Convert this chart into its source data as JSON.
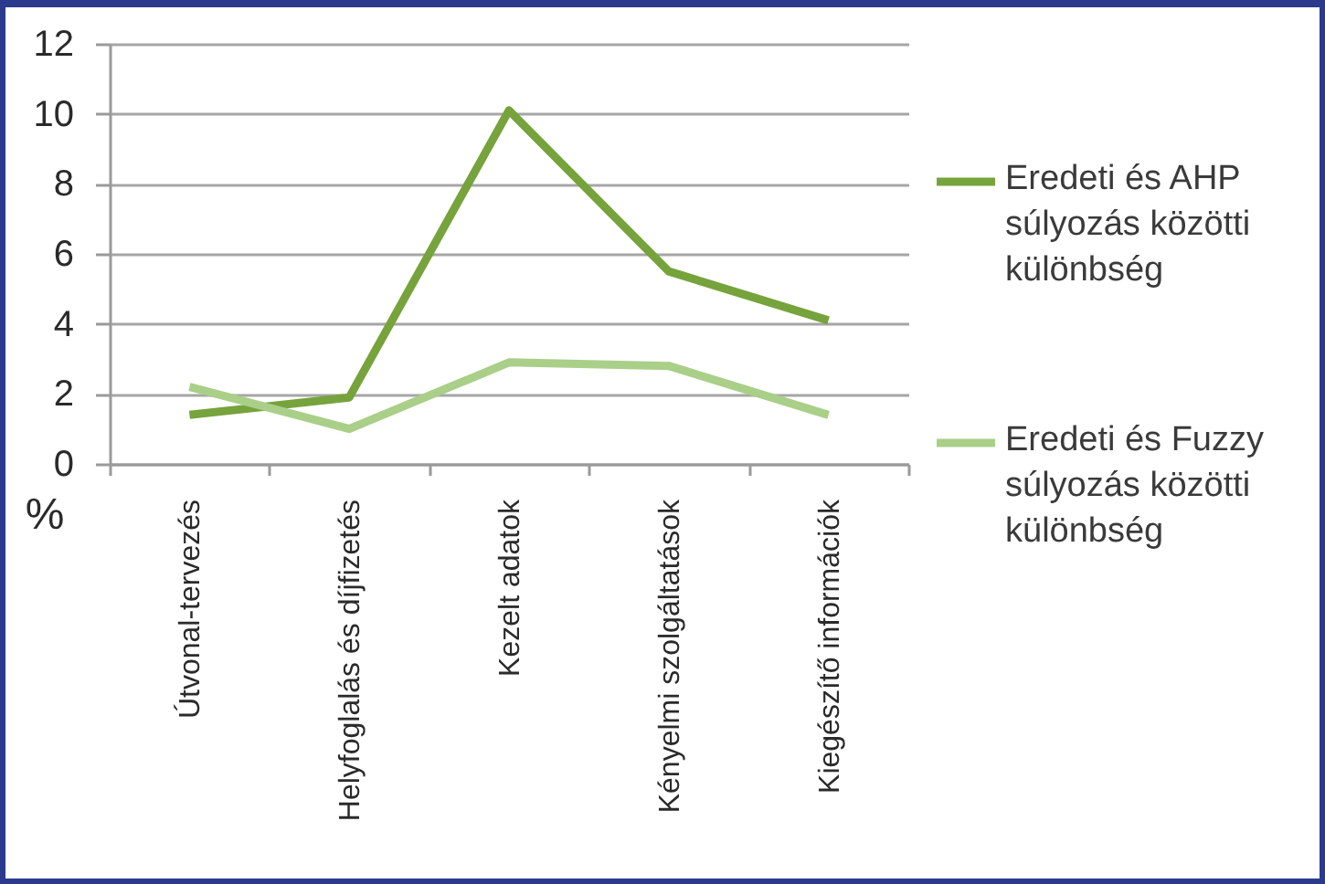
{
  "chart_data": {
    "type": "line",
    "ylabel": "%",
    "categories": [
      "Útvonal-tervezés",
      "Helyfoglalás és díjfizetés",
      "Kezelt adatok",
      "Kényelmi szolgáltatások",
      "Kiegészítő információk"
    ],
    "series": [
      {
        "name": "Eredeti és AHP súlyozás közötti különbség",
        "color": "#76a33c",
        "values": [
          1.4,
          1.9,
          10.1,
          5.5,
          4.1
        ]
      },
      {
        "name": "Eredeti és Fuzzy súlyozás közötti különbség",
        "color": "#a9cf88",
        "values": [
          2.2,
          1.0,
          2.9,
          2.8,
          1.4
        ]
      }
    ],
    "ylim": [
      0,
      12
    ],
    "yticks": [
      0,
      2,
      4,
      6,
      8,
      10,
      12
    ],
    "grid": "y",
    "legend": "right"
  }
}
